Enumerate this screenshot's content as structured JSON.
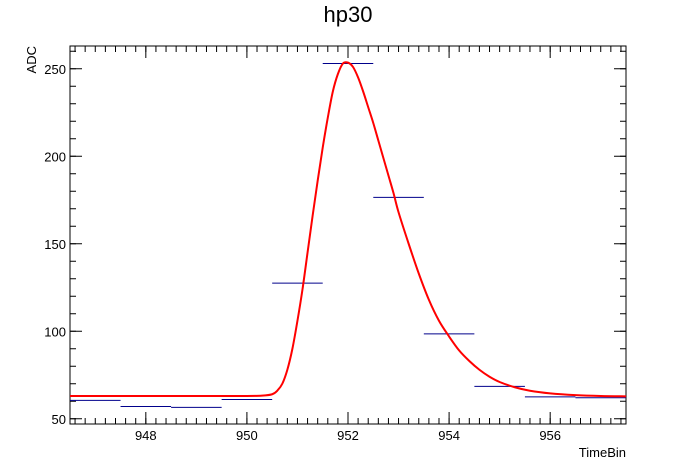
{
  "chart_data": {
    "type": "line",
    "title": "hp30",
    "xlabel": "TimeBin",
    "ylabel": "ADC",
    "xlim": [
      946.5,
      957.5
    ],
    "ylim": [
      47,
      263
    ],
    "x_ticks": [
      948,
      950,
      952,
      954,
      956
    ],
    "y_ticks": [
      50,
      100,
      150,
      200,
      250
    ],
    "x_minor_step": 0.2,
    "y_minor_step": 10,
    "grid": false,
    "colors": {
      "histogram": "#00008b",
      "fit": "#ff0000"
    },
    "series": [
      {
        "type": "histogram",
        "bins": [
          {
            "x_low": 946.5,
            "x_high": 947.5,
            "y": 60.5
          },
          {
            "x_low": 947.5,
            "x_high": 948.5,
            "y": 57
          },
          {
            "x_low": 948.5,
            "x_high": 949.5,
            "y": 56.5
          },
          {
            "x_low": 949.5,
            "x_high": 950.5,
            "y": 61
          },
          {
            "x_low": 950.5,
            "x_high": 951.5,
            "y": 127.5
          },
          {
            "x_low": 951.5,
            "x_high": 952.5,
            "y": 253
          },
          {
            "x_low": 952.5,
            "x_high": 953.5,
            "y": 176.5
          },
          {
            "x_low": 953.5,
            "x_high": 954.5,
            "y": 98.5
          },
          {
            "x_low": 954.5,
            "x_high": 955.5,
            "y": 68.5
          },
          {
            "x_low": 955.5,
            "x_high": 956.5,
            "y": 62.5
          },
          {
            "x_low": 956.5,
            "x_high": 957.5,
            "y": 62
          }
        ]
      },
      {
        "type": "fit",
        "points": [
          [
            946.5,
            63
          ],
          [
            948.0,
            63
          ],
          [
            949.0,
            63
          ],
          [
            950.0,
            63
          ],
          [
            950.3,
            63.2
          ],
          [
            950.5,
            64
          ],
          [
            950.6,
            66
          ],
          [
            950.7,
            70
          ],
          [
            950.8,
            78
          ],
          [
            950.9,
            90
          ],
          [
            951.0,
            106
          ],
          [
            951.1,
            124
          ],
          [
            951.2,
            145
          ],
          [
            951.3,
            166
          ],
          [
            951.4,
            186
          ],
          [
            951.5,
            205
          ],
          [
            951.6,
            222
          ],
          [
            951.7,
            237
          ],
          [
            951.8,
            247
          ],
          [
            951.9,
            253
          ],
          [
            952.0,
            253.5
          ],
          [
            952.1,
            251
          ],
          [
            952.2,
            245
          ],
          [
            952.3,
            237
          ],
          [
            952.4,
            228
          ],
          [
            952.5,
            219
          ],
          [
            952.6,
            209
          ],
          [
            952.7,
            199
          ],
          [
            952.8,
            189
          ],
          [
            952.9,
            179
          ],
          [
            953.0,
            168
          ],
          [
            953.2,
            150
          ],
          [
            953.4,
            133
          ],
          [
            953.6,
            118
          ],
          [
            953.8,
            106
          ],
          [
            954.0,
            97
          ],
          [
            954.2,
            89
          ],
          [
            954.4,
            83
          ],
          [
            954.6,
            78
          ],
          [
            954.8,
            74
          ],
          [
            955.0,
            71
          ],
          [
            955.3,
            68
          ],
          [
            955.6,
            66
          ],
          [
            956.0,
            64.5
          ],
          [
            956.5,
            63.5
          ],
          [
            957.0,
            63
          ],
          [
            957.5,
            62.8
          ]
        ]
      }
    ]
  }
}
